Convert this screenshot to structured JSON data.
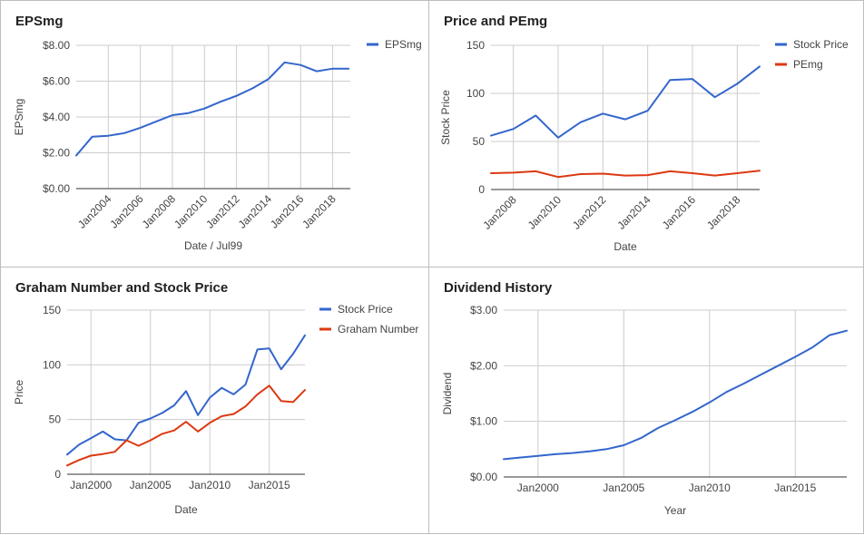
{
  "colors": {
    "blue": "#3366cc",
    "red": "#dc3912",
    "grid": "#cccccc",
    "axis": "#333333",
    "text": "#444444"
  },
  "chart_data": [
    {
      "type": "line",
      "title": "EPSmg",
      "xlabel": "Date / Jul99",
      "ylabel": "EPSmg",
      "ylim": [
        0,
        8
      ],
      "yticks": [
        0,
        2,
        4,
        6,
        8
      ],
      "ytick_labels": [
        "$0.00",
        "$2.00",
        "$4.00",
        "$6.00",
        "$8.00"
      ],
      "xlim": [
        2002,
        2019.1
      ],
      "xticks": [
        2004,
        2006,
        2008,
        2010,
        2012,
        2014,
        2016,
        2018
      ],
      "xtick_labels": [
        "Jan2004",
        "Jan2006",
        "Jan2008",
        "Jan2010",
        "Jan2012",
        "Jan2014",
        "Jan2016",
        "Jan2018"
      ],
      "legend_position": "right",
      "x": [
        2002,
        2003,
        2004,
        2005,
        2006,
        2007,
        2008,
        2009,
        2010,
        2011,
        2012,
        2013,
        2014,
        2015,
        2016,
        2017,
        2018,
        2019
      ],
      "series": [
        {
          "name": "EPSmg",
          "color": "#3366cc",
          "values": [
            1.85,
            2.9,
            2.95,
            3.1,
            3.4,
            3.75,
            4.1,
            4.22,
            4.47,
            4.85,
            5.18,
            5.6,
            6.12,
            7.05,
            6.9,
            6.55,
            6.7,
            6.7
          ]
        }
      ]
    },
    {
      "type": "line",
      "title": "Price and PEmg",
      "xlabel": "Date",
      "ylabel": "Stock Price",
      "ylim": [
        0,
        150
      ],
      "yticks": [
        0,
        50,
        100,
        150
      ],
      "ytick_labels": [
        "0",
        "50",
        "100",
        "150"
      ],
      "xlim": [
        2007,
        2019
      ],
      "xticks": [
        2008,
        2010,
        2012,
        2014,
        2016,
        2018
      ],
      "xtick_labels": [
        "Jan2008",
        "Jan2010",
        "Jan2012",
        "Jan2014",
        "Jan2016",
        "Jan2018"
      ],
      "legend_position": "right",
      "x": [
        2007,
        2008,
        2009,
        2010,
        2011,
        2012,
        2013,
        2014,
        2015,
        2016,
        2017,
        2018,
        2019
      ],
      "series": [
        {
          "name": "Stock Price",
          "color": "#3366cc",
          "values": [
            56,
            63,
            77,
            54,
            70,
            79,
            73,
            82,
            114,
            115,
            96,
            110,
            128
          ]
        },
        {
          "name": "PEmg",
          "color": "#dc3912",
          "values": [
            17,
            17.5,
            19,
            13,
            16,
            16.5,
            14.5,
            15,
            19,
            17,
            14.5,
            17,
            19.5
          ]
        }
      ]
    },
    {
      "type": "line",
      "title": "Graham Number and Stock Price",
      "xlabel": "Date",
      "ylabel": "Price",
      "ylim": [
        0,
        150
      ],
      "yticks": [
        0,
        50,
        100,
        150
      ],
      "ytick_labels": [
        "0",
        "50",
        "100",
        "150"
      ],
      "xlim": [
        1998,
        2018
      ],
      "xticks": [
        2000,
        2005,
        2010,
        2015
      ],
      "xtick_labels": [
        "Jan2000",
        "Jan2005",
        "Jan2010",
        "Jan2015"
      ],
      "legend_position": "right",
      "x": [
        1998,
        1999,
        2000,
        2001,
        2002,
        2003,
        2004,
        2005,
        2006,
        2007,
        2008,
        2009,
        2010,
        2011,
        2012,
        2013,
        2014,
        2015,
        2016,
        2017,
        2018
      ],
      "series": [
        {
          "name": "Stock Price",
          "color": "#3366cc",
          "values": [
            18,
            27,
            33,
            39,
            32,
            31,
            47,
            51,
            56,
            63,
            76,
            54,
            70,
            79,
            73,
            82,
            114,
            115,
            96,
            110,
            127
          ]
        },
        {
          "name": "Graham Number",
          "color": "#dc3912",
          "values": [
            8,
            13,
            17,
            18.5,
            20.5,
            31,
            26,
            31,
            37,
            40,
            48,
            39,
            47,
            53,
            55,
            62,
            73,
            81,
            67,
            66,
            77
          ]
        }
      ]
    },
    {
      "type": "line",
      "title": "Dividend History",
      "xlabel": "Year",
      "ylabel": "Dividend",
      "ylim": [
        0,
        3
      ],
      "yticks": [
        0,
        1,
        2,
        3
      ],
      "ytick_labels": [
        "$0.00",
        "$1.00",
        "$2.00",
        "$3.00"
      ],
      "xlim": [
        1998,
        2018
      ],
      "xticks": [
        2000,
        2005,
        2010,
        2015
      ],
      "xtick_labels": [
        "Jan2000",
        "Jan2005",
        "Jan2010",
        "Jan2015"
      ],
      "legend_position": "none",
      "x": [
        1998,
        1999,
        2000,
        2001,
        2002,
        2003,
        2004,
        2005,
        2006,
        2007,
        2008,
        2009,
        2010,
        2011,
        2012,
        2013,
        2014,
        2015,
        2016,
        2017,
        2018
      ],
      "series": [
        {
          "name": "",
          "color": "#3366cc",
          "values": [
            0.32,
            0.35,
            0.38,
            0.41,
            0.43,
            0.46,
            0.5,
            0.57,
            0.7,
            0.88,
            1.02,
            1.17,
            1.34,
            1.53,
            1.68,
            1.84,
            2.0,
            2.16,
            2.33,
            2.55,
            2.63
          ]
        }
      ]
    }
  ]
}
